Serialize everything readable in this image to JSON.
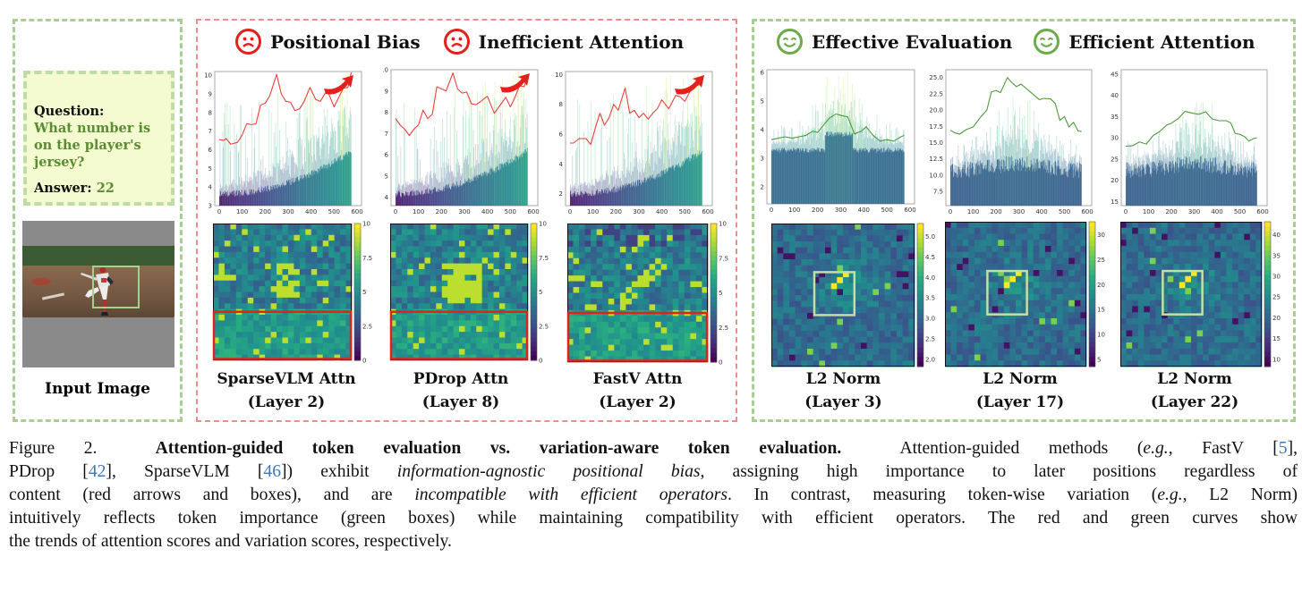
{
  "figure": {
    "input_panel": {
      "question_label": "Question:",
      "question_text": "What number is on the player's jersey?",
      "answer_label": "Answer:",
      "answer_value": "22",
      "image_caption": "Input Image"
    },
    "attention_panel": {
      "headline_1": "Positional Bias",
      "headline_2": "Inefficient Attention",
      "face_icon": "sad-face-icon",
      "accent_color": "#e3201b"
    },
    "variation_panel": {
      "headline_1": "Effective Evaluation",
      "headline_2": "Efficient Attention",
      "face_icon": "happy-face-icon",
      "accent_color": "#6cab4a"
    }
  },
  "chart_data": [
    {
      "type": "bar",
      "id": "sparsevlm-attn",
      "curve_color": "#e8413c",
      "xlim": [
        0,
        600
      ],
      "xticks": [
        "0",
        "100",
        "200",
        "300",
        "400",
        "500",
        "600"
      ],
      "ylim": [
        3,
        10.2
      ],
      "yticks": [
        "3",
        "4",
        "5",
        "6",
        "7",
        "8",
        "9",
        "10"
      ],
      "trend_x": [
        0,
        20,
        30,
        50,
        80,
        100,
        120,
        140,
        160,
        180,
        200,
        220,
        250,
        270,
        290,
        310,
        330,
        350,
        370,
        395,
        420,
        440,
        470,
        500,
        520,
        540,
        560,
        575
      ],
      "trend_y": [
        6.55,
        6.5,
        6.6,
        6.3,
        6.4,
        6.8,
        7.4,
        7.35,
        7.4,
        8.4,
        8.5,
        8.9,
        10.05,
        9.0,
        8.6,
        8.55,
        8.1,
        8.2,
        8.6,
        9.35,
        8.7,
        8.6,
        9.2,
        8.3,
        8.8,
        9.3,
        9.35,
        10.15
      ],
      "heatmap": {
        "cbar_ticks": [
          "10",
          "7.5",
          "5",
          "2.5",
          "0"
        ],
        "box_color": "#e3201b"
      },
      "label": "SparseVLM Attn",
      "layer": "(Layer 2)"
    },
    {
      "type": "bar",
      "id": "pdrop-attn",
      "curve_color": "#e8413c",
      "xlim": [
        0,
        600
      ],
      "xticks": [
        "0",
        "100",
        "200",
        "300",
        "400",
        "500",
        "600"
      ],
      "ylim": [
        3.6,
        10.0
      ],
      "yticks": [
        "4",
        "5",
        "6",
        "7",
        "8",
        "9",
        ".0"
      ],
      "trend_x": [
        0,
        20,
        40,
        60,
        80,
        100,
        120,
        140,
        160,
        180,
        200,
        220,
        250,
        270,
        290,
        310,
        330,
        350,
        370,
        400,
        430,
        460,
        480,
        500,
        520,
        540,
        560,
        575
      ],
      "trend_y": [
        7.7,
        7.4,
        7.2,
        6.9,
        7.2,
        7.4,
        8.1,
        7.7,
        7.9,
        9.2,
        9.1,
        9.0,
        9.85,
        9.1,
        8.9,
        8.95,
        8.4,
        8.35,
        8.5,
        8.75,
        7.95,
        8.4,
        8.7,
        8.25,
        8.7,
        9.25,
        9.2,
        9.7
      ],
      "heatmap": {
        "cbar_ticks": [
          "10",
          "7.5",
          "5",
          "2.5",
          "0"
        ],
        "box_color": "#e3201b"
      },
      "label": "PDrop Attn",
      "layer": "(Layer 8)"
    },
    {
      "type": "bar",
      "id": "fastv-attn",
      "curve_color": "#e8413c",
      "xlim": [
        0,
        600
      ],
      "xticks": [
        "0",
        "100",
        "200",
        "300",
        "400",
        "500",
        "600"
      ],
      "ylim": [
        1.2,
        10.2
      ],
      "yticks": [
        "2",
        "4",
        "6",
        "8",
        "10"
      ],
      "trend_x": [
        0,
        15,
        40,
        70,
        90,
        110,
        130,
        150,
        170,
        190,
        210,
        240,
        260,
        280,
        300,
        320,
        340,
        360,
        380,
        400,
        430,
        460,
        480,
        500,
        520,
        540,
        560,
        575
      ],
      "trend_y": [
        5.4,
        5.4,
        5.7,
        5.7,
        5.3,
        6.4,
        7.4,
        6.6,
        7.1,
        8.0,
        7.6,
        9.1,
        7.4,
        7.6,
        7.1,
        7.4,
        7.0,
        7.4,
        7.7,
        8.3,
        7.7,
        8.6,
        8.5,
        8.2,
        8.8,
        9.2,
        9.3,
        9.4
      ],
      "heatmap": {
        "cbar_ticks": [
          "10",
          "7.5",
          "5",
          "2.5",
          "0"
        ],
        "box_color": "#e3201b"
      },
      "label": "FastV Attn",
      "layer": "(Layer 2)"
    },
    {
      "type": "bar",
      "id": "l2-norm-layer3",
      "curve_color": "#4e9a3a",
      "xlim": [
        0,
        600
      ],
      "xticks": [
        "0",
        "100",
        "200",
        "300",
        "400",
        "500",
        "600"
      ],
      "ylim": [
        1.4,
        6.1
      ],
      "yticks": [
        "2",
        "3",
        "4",
        "5",
        "6"
      ],
      "trend_x": [
        0,
        30,
        60,
        90,
        120,
        150,
        180,
        200,
        220,
        250,
        280,
        300,
        330,
        360,
        390,
        410,
        440,
        470,
        500,
        530,
        560,
        575
      ],
      "trend_y": [
        3.65,
        3.7,
        3.75,
        3.7,
        3.75,
        3.8,
        3.95,
        3.9,
        4.1,
        4.4,
        4.55,
        4.5,
        4.45,
        3.85,
        3.95,
        4.1,
        3.8,
        3.6,
        3.65,
        3.6,
        3.75,
        3.8
      ],
      "heatmap": {
        "cbar_ticks": [
          "5.0",
          "4.5",
          "4.0",
          "3.5",
          "3.0",
          "2.5",
          "2.0"
        ],
        "box_color": "#c6dea8"
      },
      "label": "L2 Norm",
      "layer": "(Layer 3)"
    },
    {
      "type": "bar",
      "id": "l2-norm-layer17",
      "curve_color": "#4e9a3a",
      "xlim": [
        0,
        600
      ],
      "xticks": [
        "0",
        "100",
        "200",
        "300",
        "400",
        "500",
        "600"
      ],
      "ylim": [
        5.3,
        26.2
      ],
      "yticks": [
        "7.5",
        "10.0",
        "12.5",
        "15.0",
        "17.5",
        "20.0",
        "22.5",
        "25.0"
      ],
      "trend_x": [
        0,
        20,
        40,
        70,
        100,
        130,
        160,
        180,
        200,
        220,
        250,
        270,
        290,
        310,
        340,
        370,
        390,
        410,
        440,
        460,
        480,
        500,
        520,
        540,
        560,
        575
      ],
      "trend_y": [
        16.9,
        16.5,
        16.3,
        17.0,
        17.4,
        18.8,
        20.0,
        22.8,
        23.0,
        22.7,
        25.0,
        24.2,
        23.6,
        24.0,
        23.1,
        22.2,
        21.6,
        21.8,
        21.7,
        21.0,
        18.4,
        19.0,
        17.4,
        18.1,
        16.8,
        16.7
      ],
      "heatmap": {
        "cbar_ticks": [
          "30",
          "25",
          "20",
          "15",
          "10",
          "5"
        ],
        "box_color": "#c6dea8"
      },
      "label": "L2 Norm",
      "layer": "(Layer 17)"
    },
    {
      "type": "bar",
      "id": "l2-norm-layer22",
      "curve_color": "#4e9a3a",
      "xlim": [
        0,
        600
      ],
      "xticks": [
        "0",
        "100",
        "200",
        "300",
        "400",
        "500",
        "600"
      ],
      "ylim": [
        14,
        46
      ],
      "yticks": [
        "15",
        "20",
        "25",
        "30",
        "35",
        "40",
        "45"
      ],
      "trend_x": [
        0,
        30,
        60,
        90,
        120,
        150,
        180,
        200,
        230,
        260,
        290,
        320,
        350,
        380,
        410,
        440,
        460,
        480,
        500,
        520,
        540,
        560,
        575
      ],
      "trend_y": [
        28,
        28.1,
        29,
        28.5,
        30.5,
        31.5,
        33,
        33.4,
        34.5,
        36.2,
        35.8,
        35.5,
        36.1,
        34.4,
        34,
        34,
        33.5,
        31,
        30.8,
        30.3,
        29.2,
        29.8,
        30
      ],
      "heatmap": {
        "cbar_ticks": [
          "40",
          "35",
          "30",
          "25",
          "20",
          "15",
          "10"
        ],
        "box_color": "#c6dea8"
      },
      "label": "L2 Norm",
      "layer": "(Layer 22)"
    }
  ],
  "caption": {
    "figure_label": "Figure 2.",
    "bold_title": "Attention-guided token evaluation vs.  variation-aware token evaluation.",
    "t1": "Attention-guided methods (",
    "eg1": "e.g.",
    "t2": ", FastV [",
    "ref_fastv": "5",
    "t3": "],",
    "t4": "PDrop [",
    "ref_pdrop": "42",
    "t5": "], SparseVLM [",
    "ref_sparsevlm": "46",
    "t6": "]) exhibit ",
    "it_bias": "information-agnostic positional bias",
    "t7": ", assigning high importance to later positions regardless of",
    "t8": "content (red arrows and boxes), and are ",
    "it_incompat": "incompatible with efficient operators",
    "t9": ". In contrast, measuring token-wise variation (",
    "eg2": "e.g.",
    "t10": ", L2 Norm)",
    "t11": "intuitively reflects token importance (green boxes) while maintaining compatibility with efficient operators. The red and green curves show",
    "t12": "the trends of attention scores and variation scores, respectively."
  }
}
